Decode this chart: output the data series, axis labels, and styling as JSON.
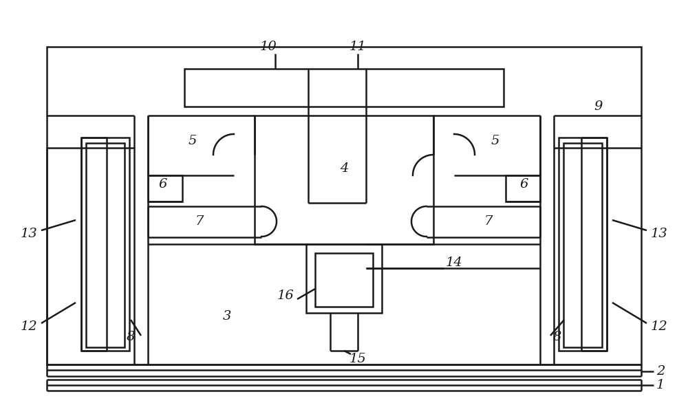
{
  "bg": "#ffffff",
  "lc": "#1a1a1a",
  "lw": 1.8,
  "fs": 14,
  "fig_w": 10.0,
  "fig_h": 6.02,
  "dpi": 100
}
